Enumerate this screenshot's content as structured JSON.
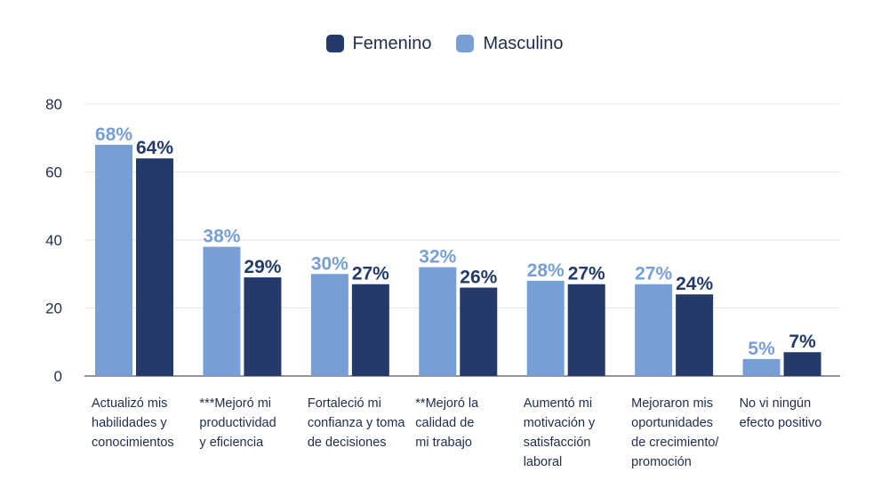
{
  "chart_data": {
    "type": "bar",
    "categories": [
      [
        "Actualizó mis",
        "habilidades y",
        "conocimientos"
      ],
      [
        "***Mejoró mi",
        "productividad",
        "y eficiencia"
      ],
      [
        "Fortaleció mi",
        "confianza y toma",
        "de decisiones"
      ],
      [
        "**Mejoró la",
        "calidad de",
        "mi trabajo"
      ],
      [
        "Aumentó mi",
        "motivación y",
        "satisfacción",
        "laboral"
      ],
      [
        "Mejoraron mis",
        "oportunidades",
        "de crecimiento/",
        "promoción"
      ],
      [
        "No vi ningún",
        "efecto positivo"
      ]
    ],
    "series": [
      {
        "name": "Masculino",
        "color": "#779fd5",
        "values": [
          68,
          38,
          30,
          32,
          28,
          27,
          5
        ]
      },
      {
        "name": "Femenino",
        "color": "#233a6b",
        "values": [
          64,
          29,
          27,
          26,
          27,
          24,
          7
        ]
      }
    ],
    "data_labels": {
      "Masculino": [
        "68%",
        "38%",
        "30%",
        "32%",
        "28%",
        "27%",
        "5%"
      ],
      "Femenino": [
        "64%",
        "29%",
        "27%",
        "26%",
        "27%",
        "24%",
        "7%"
      ]
    },
    "y_ticks": [
      "0",
      "20",
      "40",
      "60",
      "80"
    ],
    "ylim": [
      0,
      80
    ],
    "grid": true,
    "legend_position": "top-center",
    "title": "",
    "xlabel": "",
    "ylabel": ""
  },
  "legend": [
    {
      "label": "Femenino",
      "color": "#233a6b"
    },
    {
      "label": "Masculino",
      "color": "#779fd5"
    }
  ]
}
